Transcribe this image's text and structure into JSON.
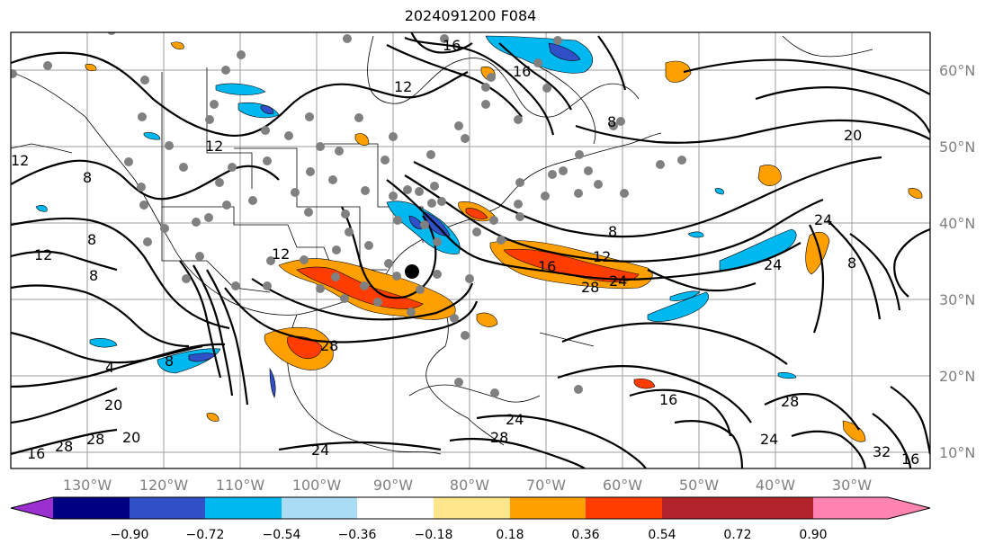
{
  "title": "2024091200 F084",
  "map": {
    "lon_labels": [
      "130°W",
      "120°W",
      "110°W",
      "100°W",
      "90°W",
      "80°W",
      "70°W",
      "60°W",
      "50°W",
      "40°W",
      "30°W"
    ],
    "lat_labels": [
      "60°N",
      "50°N",
      "40°N",
      "30°N",
      "20°N",
      "10°N"
    ],
    "grid_color": "#9e9e9e",
    "contour_color": "#000000",
    "contour_labels": [
      "16",
      "12",
      "16",
      "12",
      "20",
      "12",
      "12",
      "8",
      "8",
      "8",
      "12",
      "16",
      "12",
      "8",
      "16",
      "28",
      "24",
      "28",
      "24",
      "8",
      "4",
      "8",
      "20",
      "24",
      "28",
      "24",
      "28",
      "16",
      "24",
      "24",
      "28",
      "32",
      "16",
      "8",
      "28",
      "20"
    ]
  },
  "colorbar": {
    "ticks": [
      "−0.90",
      "−0.72",
      "−0.54",
      "−0.36",
      "−0.18",
      "0.18",
      "0.36",
      "0.54",
      "0.72",
      "0.90"
    ],
    "colors": [
      "#9b30d0",
      "#000080",
      "#3050c8",
      "#00b8f0",
      "#aadcf6",
      "#ffffff",
      "#ffe68c",
      "#ffa000",
      "#ff3d00",
      "#b2222a",
      "#ff85b0"
    ]
  }
}
